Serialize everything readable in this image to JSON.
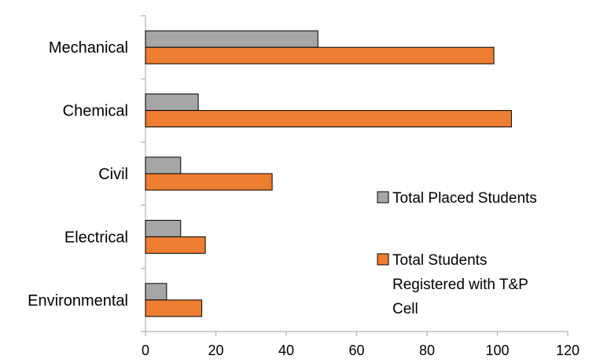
{
  "chart_data": {
    "type": "bar",
    "orientation": "horizontal",
    "categories": [
      "Mechanical",
      "Chemical",
      "Civil",
      "Electrical",
      "Environmental"
    ],
    "series": [
      {
        "name": "Total Placed Students",
        "color": "#a6a6a6",
        "values": [
          49,
          15,
          10,
          10,
          6
        ]
      },
      {
        "name": "Total Students Registered with T&P Cell",
        "legend_lines": [
          "Total Students",
          "Registered with T&P",
          "Cell"
        ],
        "color": "#ed7d31",
        "values": [
          99,
          104,
          36,
          17,
          16
        ]
      }
    ],
    "xlim": [
      0,
      120
    ],
    "xticks": [
      "0",
      "20",
      "40",
      "60",
      "80",
      "100",
      "120"
    ],
    "grid": false,
    "legend_position": "right"
  }
}
